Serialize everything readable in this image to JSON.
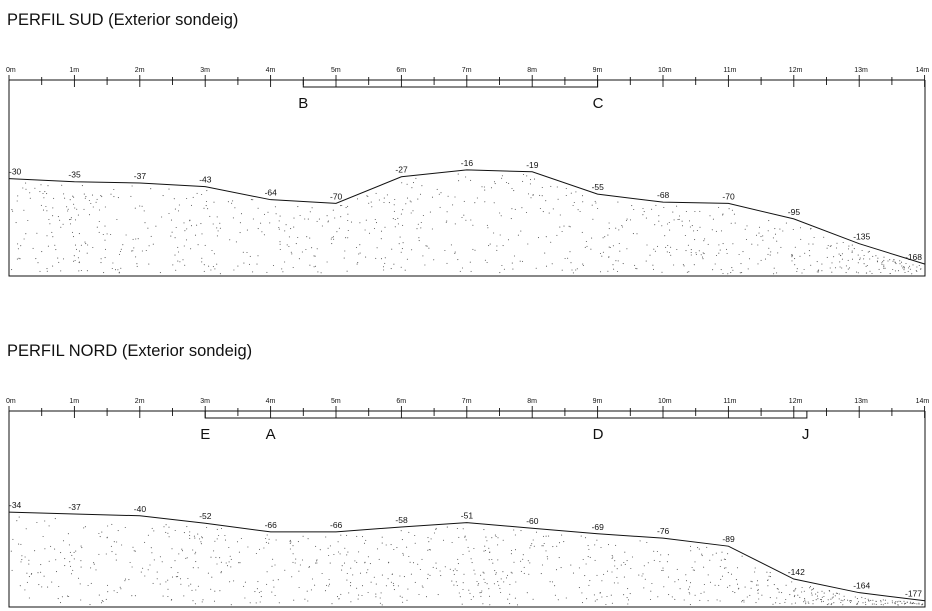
{
  "profiles": [
    {
      "id": "sud",
      "title": "PERFIL SUD (Exterior sondeig)",
      "scale_labels": [
        "0m",
        "1m",
        "2m",
        "3m",
        "4m",
        "5m",
        "6m",
        "7m",
        "8m",
        "9m",
        "10m",
        "11m",
        "12m",
        "13m",
        "14m"
      ],
      "segment": {
        "from_m": 4.5,
        "to_m": 9.0
      },
      "points": [
        {
          "label": "B",
          "m": 4.5
        },
        {
          "label": "C",
          "m": 9.0
        }
      ],
      "elevations": [
        {
          "m": 0.0,
          "value": -30,
          "label": "-30"
        },
        {
          "m": 1.0,
          "value": -35,
          "label": "-35"
        },
        {
          "m": 2.0,
          "value": -37,
          "label": "-37"
        },
        {
          "m": 3.0,
          "value": -43,
          "label": "-43"
        },
        {
          "m": 4.0,
          "value": -64,
          "label": "-64"
        },
        {
          "m": 5.0,
          "value": -70,
          "label": "-70"
        },
        {
          "m": 6.0,
          "value": -27,
          "label": "-27"
        },
        {
          "m": 7.0,
          "value": -16,
          "label": "-16"
        },
        {
          "m": 8.0,
          "value": -19,
          "label": "-19"
        },
        {
          "m": 9.0,
          "value": -55,
          "label": "-55"
        },
        {
          "m": 10.0,
          "value": -68,
          "label": "-68"
        },
        {
          "m": 11.0,
          "value": -70,
          "label": "-70"
        },
        {
          "m": 12.0,
          "value": -95,
          "label": "-95"
        },
        {
          "m": 13.0,
          "value": -135,
          "label": "-135"
        },
        {
          "m": 14.0,
          "value": -168,
          "label": "-168"
        }
      ]
    },
    {
      "id": "nord",
      "title": "PERFIL NORD (Exterior sondeig)",
      "scale_labels": [
        "0m",
        "1m",
        "2m",
        "3m",
        "4m",
        "5m",
        "6m",
        "7m",
        "8m",
        "9m",
        "10m",
        "11m",
        "12m",
        "13m",
        "14m"
      ],
      "segment": {
        "from_m": 3.0,
        "to_m": 12.2
      },
      "points": [
        {
          "label": "E",
          "m": 3.0
        },
        {
          "label": "A",
          "m": 4.0
        },
        {
          "label": "D",
          "m": 9.0
        },
        {
          "label": "J",
          "m": 12.2
        }
      ],
      "elevations": [
        {
          "m": 0.0,
          "value": -34,
          "label": "-34"
        },
        {
          "m": 1.0,
          "value": -37,
          "label": "-37"
        },
        {
          "m": 2.0,
          "value": -40,
          "label": "-40"
        },
        {
          "m": 3.0,
          "value": -52,
          "label": "-52"
        },
        {
          "m": 4.0,
          "value": -66,
          "label": "-66"
        },
        {
          "m": 5.0,
          "value": -66,
          "label": "-66"
        },
        {
          "m": 6.0,
          "value": -58,
          "label": "-58"
        },
        {
          "m": 7.0,
          "value": -51,
          "label": "-51"
        },
        {
          "m": 8.0,
          "value": -60,
          "label": "-60"
        },
        {
          "m": 9.0,
          "value": -69,
          "label": "-69"
        },
        {
          "m": 10.0,
          "value": -76,
          "label": "-76"
        },
        {
          "m": 11.0,
          "value": -89,
          "label": "-89"
        },
        {
          "m": 12.0,
          "value": -142,
          "label": "-142"
        },
        {
          "m": 13.0,
          "value": -164,
          "label": "-164"
        },
        {
          "m": 14.0,
          "value": -177,
          "label": "-177"
        }
      ]
    }
  ]
}
